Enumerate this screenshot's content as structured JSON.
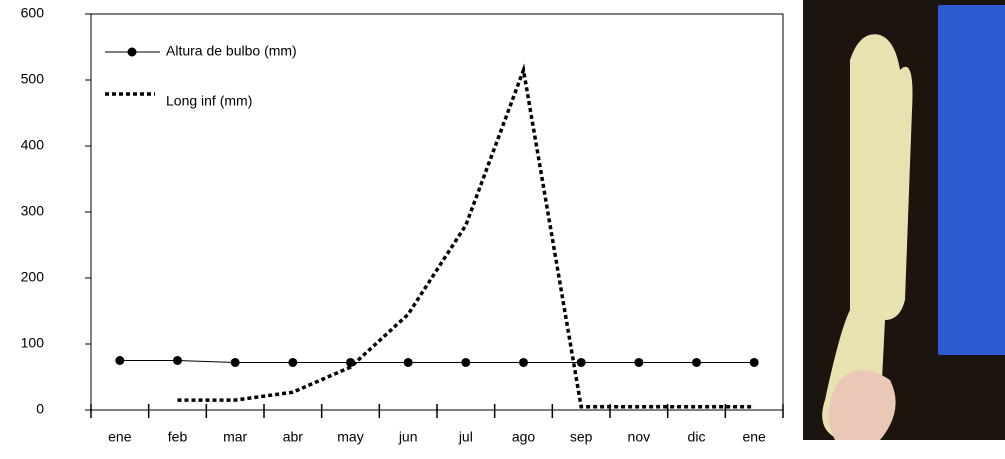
{
  "chart_data": {
    "type": "line",
    "categories": [
      "ene",
      "feb",
      "mar",
      "abr",
      "may",
      "jun",
      "jul",
      "ago",
      "sep",
      "nov",
      "dic",
      "ene"
    ],
    "series": [
      {
        "name": "Altura de bulbo (mm)",
        "color": "#000000",
        "marker": "circle",
        "dash": "solid",
        "values": [
          75,
          75,
          72,
          72,
          72,
          72,
          72,
          72,
          72,
          72,
          72,
          72
        ]
      },
      {
        "name": "Long inf (mm)",
        "color": "#000000",
        "marker": "none",
        "dash": "dotted",
        "values": [
          null,
          15,
          15,
          27,
          65,
          145,
          280,
          515,
          5,
          5,
          5,
          5
        ]
      }
    ],
    "ylim": [
      0,
      600
    ],
    "yticks": [
      0,
      100,
      200,
      300,
      400,
      500,
      600
    ],
    "grid": false,
    "legend": "top-left"
  }
}
